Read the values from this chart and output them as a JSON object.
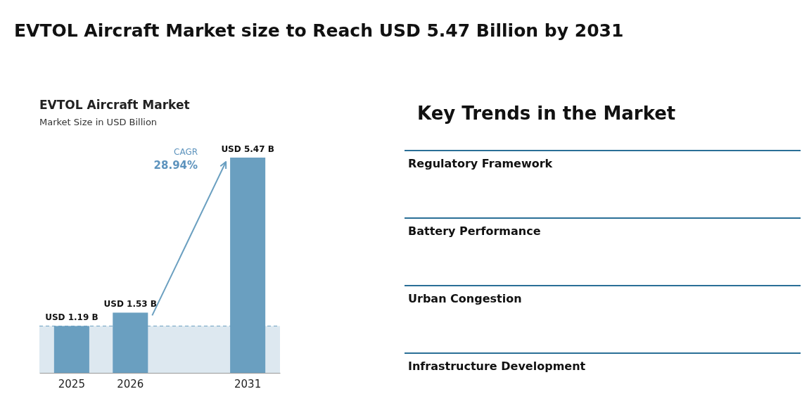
{
  "chart_data": [
    {
      "type": "bar",
      "title": "EVTOL Aircraft Market size to Reach USD 5.47 Billion by 2031",
      "subtitle": "EVTOL Aircraft Market",
      "ylabel": "Market Size in USD Billion",
      "categories": [
        "2025",
        "2026",
        null,
        "2031"
      ],
      "series": [
        {
          "color": "#6a9fc0",
          "values": [
            1.19,
            1.53,
            null,
            5.47
          ],
          "value_labels": [
            "USD 1.19 B",
            "USD 1.53 B",
            null,
            "USD 5.47 B"
          ]
        }
      ],
      "tick_labels": "x",
      "ref_lines": [
        {
          "axis": "y",
          "value": 1.19,
          "color": "#6a9fc0",
          "line_style": "dashed"
        }
      ],
      "bands": [
        {
          "axis": "y",
          "from": 0,
          "to": 1.19,
          "color": "#dde8f0"
        }
      ],
      "annotations": [
        "CAGR",
        "28.94%"
      ]
    },
    {
      "type": "other",
      "title": "Key Trends in the Market",
      "annotations": [
        "Regulatory Framework",
        "Battery Performance",
        "Urban Congestion",
        "Infrastructure Development"
      ]
    }
  ]
}
